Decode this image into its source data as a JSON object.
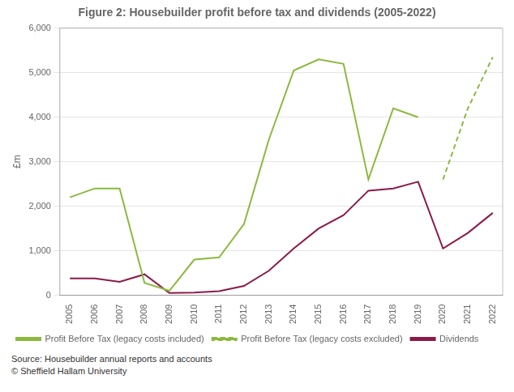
{
  "chart_data": {
    "type": "line",
    "title": "Figure 2: Housebuilder profit before tax and dividends (2005-2022)",
    "y_label": "£m",
    "annotations": [
      "Source: Housebuilder annual reports and accounts",
      "© Sheffield Hallam University"
    ],
    "x": [
      2005,
      2006,
      2007,
      2008,
      2009,
      2010,
      2011,
      2012,
      2013,
      2014,
      2015,
      2016,
      2017,
      2018,
      2019,
      2020,
      2021,
      2022
    ],
    "xlim": [
      2004.6,
      2022.4
    ],
    "xticks": [
      2005,
      2006,
      2007,
      2008,
      2009,
      2010,
      2011,
      2012,
      2013,
      2014,
      2015,
      2016,
      2017,
      2018,
      2019,
      2020,
      2021,
      2022
    ],
    "ylim": [
      0,
      6000
    ],
    "yticks": [
      0,
      {
        "value": 1000,
        "label": "1,000"
      },
      {
        "value": 2000,
        "label": "2,000"
      },
      {
        "value": 3000,
        "label": "3,000"
      },
      {
        "value": 4000,
        "label": "4,000"
      },
      {
        "value": 5000,
        "label": "5,000"
      },
      {
        "value": 6000,
        "label": "6,000"
      }
    ],
    "grid": "y",
    "legend": "bottom",
    "series": [
      {
        "name": "Profit Before Tax (legacy costs included)",
        "color": "#8db83e",
        "line_style": "solid",
        "values": [
          2200,
          2400,
          2400,
          280,
          100,
          800,
          850,
          1600,
          3500,
          5050,
          5300,
          5200,
          2600,
          4200,
          4000,
          null,
          null,
          null
        ]
      },
      {
        "name": "Profit Before Tax (legacy costs excluded)",
        "color": "#8db83e",
        "line_style": "dashed",
        "values": [
          null,
          null,
          null,
          null,
          null,
          null,
          null,
          null,
          null,
          null,
          null,
          null,
          null,
          null,
          null,
          2600,
          4200,
          5350
        ]
      },
      {
        "name": "Dividends",
        "color": "#8b1a4a",
        "line_style": "solid",
        "values": [
          380,
          380,
          300,
          470,
          50,
          60,
          90,
          210,
          550,
          1050,
          1500,
          1800,
          2350,
          2400,
          2550,
          1050,
          1400,
          1850
        ]
      }
    ]
  }
}
